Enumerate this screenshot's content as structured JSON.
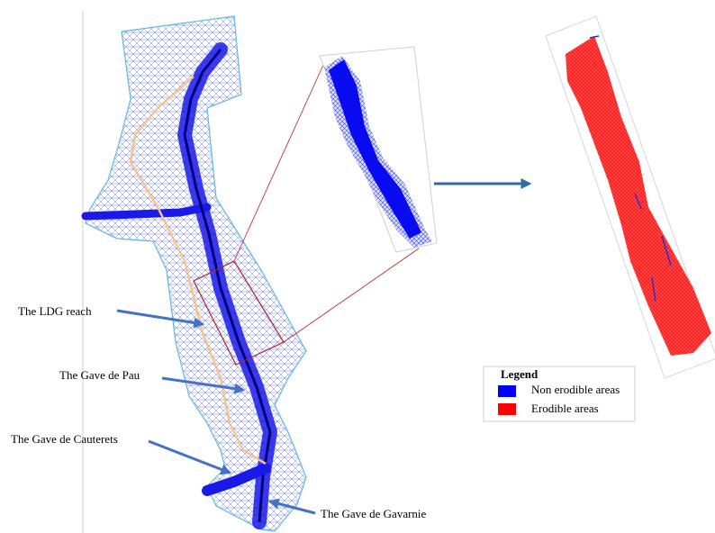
{
  "labels": [
    "The LDG reach",
    "The Gave de Pau",
    "The Gave de Cauterets",
    "The Gave de Gavarnie"
  ],
  "legend": {
    "title": "Legend",
    "items": [
      {
        "label": "Non erodible areas",
        "color": "#0000ff"
      },
      {
        "label": "Erodible areas",
        "color": "#ff0000"
      }
    ]
  }
}
